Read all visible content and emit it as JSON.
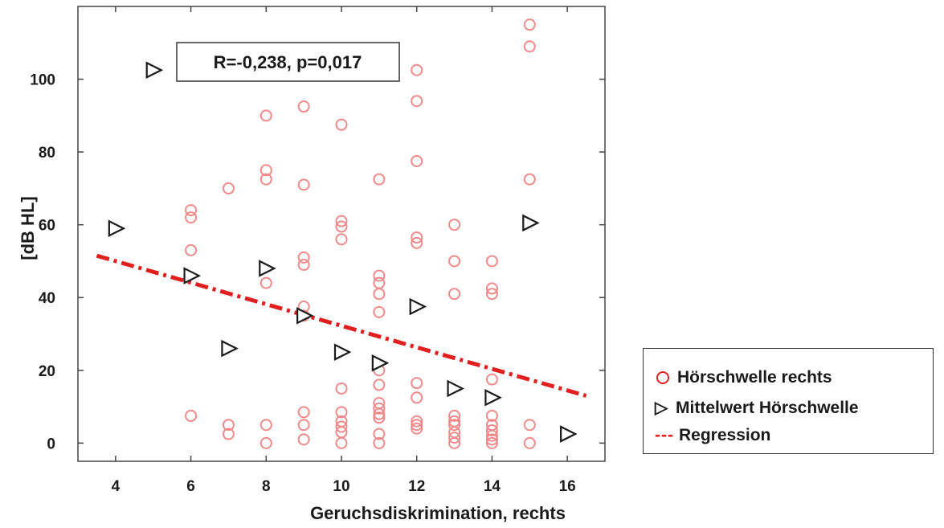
{
  "chart_data": {
    "type": "scatter",
    "xlabel": "Geruchsdiskrimination, rechts",
    "ylabel": "[dB HL]",
    "xlim": [
      3,
      17
    ],
    "ylim": [
      -5,
      120
    ],
    "xticks": [
      4,
      6,
      8,
      10,
      12,
      14,
      16
    ],
    "yticks": [
      0,
      20,
      40,
      60,
      80,
      100
    ],
    "grid": false,
    "legend_position": "right",
    "annotation": "R=-0,238, p=0,017",
    "colors": {
      "hearing_threshold": "#f08a8a",
      "mean": "#1a1a1a",
      "regression": "#e0201e"
    },
    "series": [
      {
        "name": "Hörschwelle rechts",
        "marker": "circle",
        "points": [
          [
            6,
            64
          ],
          [
            6,
            62
          ],
          [
            6,
            53
          ],
          [
            6,
            7.5
          ],
          [
            7,
            70
          ],
          [
            7,
            5
          ],
          [
            7,
            2.5
          ],
          [
            8,
            90
          ],
          [
            8,
            75
          ],
          [
            8,
            72.5
          ],
          [
            8,
            44
          ],
          [
            8,
            5
          ],
          [
            8,
            0
          ],
          [
            9,
            92.5
          ],
          [
            9,
            71
          ],
          [
            9,
            51
          ],
          [
            9,
            49
          ],
          [
            9,
            37.5
          ],
          [
            9,
            35
          ],
          [
            9,
            8.5
          ],
          [
            9,
            5
          ],
          [
            9,
            1
          ],
          [
            10,
            87.5
          ],
          [
            10,
            61
          ],
          [
            10,
            59.5
          ],
          [
            10,
            56
          ],
          [
            10,
            15
          ],
          [
            10,
            8.5
          ],
          [
            10,
            6
          ],
          [
            10,
            4.5
          ],
          [
            10,
            3
          ],
          [
            10,
            0
          ],
          [
            11,
            72.5
          ],
          [
            11,
            46
          ],
          [
            11,
            44
          ],
          [
            11,
            41
          ],
          [
            11,
            36
          ],
          [
            11,
            20
          ],
          [
            11,
            16
          ],
          [
            11,
            11
          ],
          [
            11,
            9.5
          ],
          [
            11,
            8
          ],
          [
            11,
            7
          ],
          [
            11,
            2.5
          ],
          [
            11,
            0
          ],
          [
            12,
            102.5
          ],
          [
            12,
            94
          ],
          [
            12,
            77.5
          ],
          [
            12,
            56.5
          ],
          [
            12,
            55
          ],
          [
            12,
            16.5
          ],
          [
            12,
            12.5
          ],
          [
            12,
            6
          ],
          [
            12,
            5
          ],
          [
            12,
            4
          ],
          [
            13,
            60
          ],
          [
            13,
            50
          ],
          [
            13,
            41
          ],
          [
            13,
            7.5
          ],
          [
            13,
            6
          ],
          [
            13,
            5
          ],
          [
            13,
            3
          ],
          [
            13,
            1.5
          ],
          [
            13,
            0
          ],
          [
            14,
            50
          ],
          [
            14,
            42.5
          ],
          [
            14,
            41
          ],
          [
            14,
            17.5
          ],
          [
            14,
            7.5
          ],
          [
            14,
            5
          ],
          [
            14,
            3.5
          ],
          [
            14,
            2
          ],
          [
            14,
            1
          ],
          [
            14,
            0
          ],
          [
            15,
            115
          ],
          [
            15,
            109
          ],
          [
            15,
            72.5
          ],
          [
            15,
            5
          ],
          [
            15,
            0
          ]
        ]
      },
      {
        "name": "Mittelwert Hörschwelle",
        "marker": "triangle-right",
        "points": [
          [
            4,
            59
          ],
          [
            5,
            102.5
          ],
          [
            6,
            46
          ],
          [
            7,
            26
          ],
          [
            8,
            48
          ],
          [
            9,
            35
          ],
          [
            10,
            25
          ],
          [
            11,
            22
          ],
          [
            12,
            37.5
          ],
          [
            13,
            15
          ],
          [
            14,
            12.5
          ],
          [
            15,
            60.5
          ],
          [
            16,
            2.5
          ]
        ]
      },
      {
        "name": "Regression",
        "marker": "dash-dot-line",
        "line": [
          [
            3.5,
            51.5
          ],
          [
            16.5,
            13
          ]
        ]
      }
    ]
  },
  "legend": {
    "items": [
      {
        "symbol": "○",
        "label": "Hörschwelle rechts"
      },
      {
        "symbol": "▷",
        "label": "Mittelwert Hörschwelle"
      },
      {
        "symbol": "---",
        "label": "Regression"
      }
    ]
  }
}
